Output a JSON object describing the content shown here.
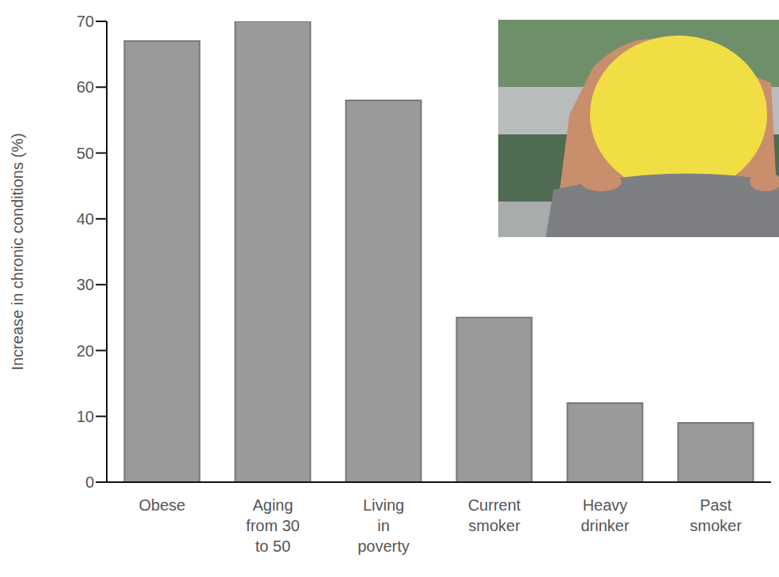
{
  "chart_data": {
    "type": "bar",
    "y_label": "Increase in chronic conditions (%)",
    "categories": [
      "Obese",
      "Aging from 30 to 50",
      "Living in poverty",
      "Current smoker",
      "Heavy drinker",
      "Past smoker"
    ],
    "values": [
      67,
      70,
      58,
      25,
      12,
      9
    ],
    "color": "#9a9a9a",
    "ylim": [
      0,
      70
    ],
    "yticks": [
      0,
      10,
      20,
      30,
      40,
      50,
      60,
      70
    ],
    "grid": false
  }
}
